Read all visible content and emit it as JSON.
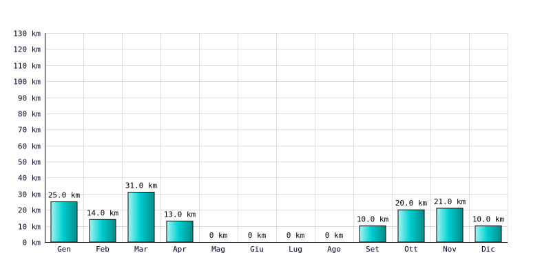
{
  "chart_data": {
    "type": "bar",
    "categories": [
      "Gen",
      "Feb",
      "Mar",
      "Apr",
      "Mag",
      "Giu",
      "Lug",
      "Ago",
      "Set",
      "Ott",
      "Nov",
      "Dic"
    ],
    "values": [
      25.0,
      14.0,
      31.0,
      13.0,
      0,
      0,
      0,
      0,
      10.0,
      20.0,
      21.0,
      10.0
    ],
    "value_labels": [
      "25.0 km",
      "14.0 km",
      "31.0 km",
      "13.0 km",
      "0 km",
      "0 km",
      "0 km",
      "0 km",
      "10.0 km",
      "20.0 km",
      "21.0 km",
      "10.0 km"
    ],
    "y_ticks": [
      0,
      10,
      20,
      30,
      40,
      50,
      60,
      70,
      80,
      90,
      100,
      110,
      120,
      130
    ],
    "y_tick_labels": [
      "0 km",
      "10 km",
      "20 km",
      "30 km",
      "40 km",
      "50 km",
      "60 km",
      "70 km",
      "80 km",
      "90 km",
      "100 km",
      "110 km",
      "120 km",
      "130 km"
    ],
    "title": "",
    "xlabel": "",
    "ylabel": "",
    "ylim": [
      0,
      130
    ],
    "grid": true,
    "colors": {
      "bar_light": "#a8f4f4",
      "bar_mid": "#00d0d0",
      "bar_dark": "#008a8a",
      "grid": "#dcdcdc",
      "axis": "#000000"
    }
  }
}
